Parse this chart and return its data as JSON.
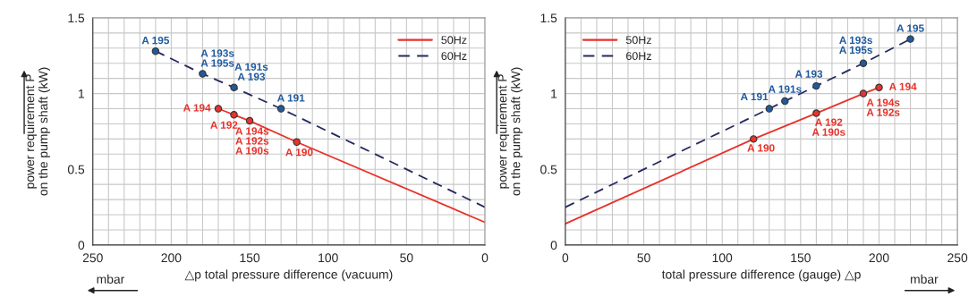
{
  "chart_data": [
    {
      "type": "line",
      "xlabel": "△p total pressure difference (vacuum)",
      "ylabel": "power requirement P\non the pump shaft (kW)",
      "xlim": [
        250,
        0
      ],
      "ylim": [
        0,
        1.5
      ],
      "xticks": [
        0,
        {
          "value": 10,
          "label": null
        },
        {
          "value": 20,
          "label": null
        },
        {
          "value": 30,
          "label": null
        },
        {
          "value": 40,
          "label": null
        },
        50,
        {
          "value": 60,
          "label": null
        },
        {
          "value": 70,
          "label": null
        },
        {
          "value": 80,
          "label": null
        },
        {
          "value": 90,
          "label": null
        },
        100,
        {
          "value": 110,
          "label": null
        },
        {
          "value": 120,
          "label": null
        },
        {
          "value": 130,
          "label": null
        },
        {
          "value": 140,
          "label": null
        },
        150,
        {
          "value": 160,
          "label": null
        },
        {
          "value": 170,
          "label": null
        },
        {
          "value": 180,
          "label": null
        },
        {
          "value": 190,
          "label": null
        },
        200,
        {
          "value": 210,
          "label": null
        },
        {
          "value": 220,
          "label": null
        },
        {
          "value": 230,
          "label": null
        },
        {
          "value": 240,
          "label": null
        },
        250
      ],
      "yticks": [
        0,
        {
          "value": 0.1,
          "label": null
        },
        {
          "value": 0.2,
          "label": null
        },
        {
          "value": 0.3,
          "label": null
        },
        {
          "value": 0.4,
          "label": null
        },
        0.5,
        {
          "value": 0.6,
          "label": null
        },
        {
          "value": 0.7,
          "label": null
        },
        {
          "value": 0.8,
          "label": null
        },
        {
          "value": 0.9,
          "label": null
        },
        1,
        {
          "value": 1.1,
          "label": null
        },
        {
          "value": 1.2,
          "label": null
        },
        {
          "value": 1.3,
          "label": null
        },
        {
          "value": 1.4,
          "label": null
        },
        1.5
      ],
      "grid": true,
      "legend": "top right",
      "series": [
        {
          "name": "50Hz",
          "color": "#e8322a",
          "line_style": "solid",
          "marker": "none",
          "x": [
            170,
            160,
            150,
            120,
            0
          ],
          "values": [
            0.9,
            0.86,
            0.82,
            0.68,
            0.15
          ]
        },
        {
          "name": "60Hz",
          "color": "#252a5e",
          "line_style": "dashed",
          "marker": "none",
          "x": [
            210,
            180,
            160,
            130,
            0
          ],
          "values": [
            1.28,
            1.13,
            1.04,
            0.9,
            0.25
          ]
        },
        {
          "type": "scatter",
          "color": "#e8322a",
          "marker": "circle",
          "x": [
            170,
            160,
            150,
            120
          ],
          "values": [
            0.9,
            0.86,
            0.82,
            0.68
          ]
        },
        {
          "type": "scatter",
          "color": "#1f5a9e",
          "marker": "circle",
          "x": [
            210,
            180,
            160,
            130
          ],
          "values": [
            1.28,
            1.13,
            1.04,
            0.9
          ]
        }
      ],
      "annotations": [
        {
          "text": "A 195",
          "x": 210,
          "y": 1.28
        },
        {
          "text": "A 193s\nA 195s",
          "x": 180,
          "y": 1.13
        },
        {
          "text": "A 191s\nA 193",
          "x": 160,
          "y": 1.04
        },
        {
          "text": "A 191",
          "x": 130,
          "y": 0.9
        },
        {
          "text": "A 194",
          "x": 170,
          "y": 0.9
        },
        {
          "text": "A 192",
          "x": 160,
          "y": 0.86
        },
        {
          "text": "A 194s\nA 192s\nA 190s",
          "x": 150,
          "y": 0.82
        },
        {
          "text": "A 190",
          "x": 120,
          "y": 0.68
        },
        "mbar"
      ]
    },
    {
      "type": "line",
      "xlabel": "total pressure difference (gauge) △p",
      "ylabel": "power requirement P\non the pump shaft (kW)",
      "xlim": [
        0,
        250
      ],
      "ylim": [
        0,
        1.5
      ],
      "xticks": [
        0,
        {
          "value": 10,
          "label": null
        },
        {
          "value": 20,
          "label": null
        },
        {
          "value": 30,
          "label": null
        },
        {
          "value": 40,
          "label": null
        },
        50,
        {
          "value": 60,
          "label": null
        },
        {
          "value": 70,
          "label": null
        },
        {
          "value": 80,
          "label": null
        },
        {
          "value": 90,
          "label": null
        },
        100,
        {
          "value": 110,
          "label": null
        },
        {
          "value": 120,
          "label": null
        },
        {
          "value": 130,
          "label": null
        },
        {
          "value": 140,
          "label": null
        },
        150,
        {
          "value": 160,
          "label": null
        },
        {
          "value": 170,
          "label": null
        },
        {
          "value": 180,
          "label": null
        },
        {
          "value": 190,
          "label": null
        },
        200,
        {
          "value": 210,
          "label": null
        },
        {
          "value": 220,
          "label": null
        },
        {
          "value": 230,
          "label": null
        },
        {
          "value": 240,
          "label": null
        },
        250
      ],
      "yticks": [
        0,
        {
          "value": 0.1,
          "label": null
        },
        {
          "value": 0.2,
          "label": null
        },
        {
          "value": 0.3,
          "label": null
        },
        {
          "value": 0.4,
          "label": null
        },
        0.5,
        {
          "value": 0.6,
          "label": null
        },
        {
          "value": 0.7,
          "label": null
        },
        {
          "value": 0.8,
          "label": null
        },
        {
          "value": 0.9,
          "label": null
        },
        1,
        {
          "value": 1.1,
          "label": null
        },
        {
          "value": 1.2,
          "label": null
        },
        {
          "value": 1.3,
          "label": null
        },
        {
          "value": 1.4,
          "label": null
        },
        1.5
      ],
      "grid": true,
      "legend": "top left",
      "series": [
        {
          "name": "50Hz",
          "color": "#e8322a",
          "line_style": "solid",
          "marker": "none",
          "x": [
            0,
            120,
            160,
            190,
            200
          ],
          "values": [
            0.14,
            0.7,
            0.87,
            1.0,
            1.04
          ]
        },
        {
          "name": "60Hz",
          "color": "#252a5e",
          "line_style": "dashed",
          "marker": "none",
          "x": [
            0,
            130,
            140,
            160,
            190,
            220
          ],
          "values": [
            0.25,
            0.9,
            0.95,
            1.05,
            1.2,
            1.36
          ]
        },
        {
          "type": "scatter",
          "color": "#e8322a",
          "marker": "circle",
          "x": [
            120,
            160,
            190,
            200
          ],
          "values": [
            0.7,
            0.87,
            1.0,
            1.04
          ]
        },
        {
          "type": "scatter",
          "color": "#1f5a9e",
          "marker": "circle",
          "x": [
            130,
            140,
            160,
            190,
            220
          ],
          "values": [
            0.9,
            0.95,
            1.05,
            1.2,
            1.36
          ]
        }
      ],
      "annotations": [
        {
          "text": "A 190",
          "x": 120,
          "y": 0.7
        },
        {
          "text": "A 192\nA 190s",
          "x": 160,
          "y": 0.87
        },
        {
          "text": "A 194s\nA 192s",
          "x": 190,
          "y": 1.0
        },
        {
          "text": "A 194",
          "x": 200,
          "y": 1.04
        },
        {
          "text": "A 191",
          "x": 130,
          "y": 0.9
        },
        {
          "text": "A 191s",
          "x": 140,
          "y": 0.95
        },
        {
          "text": "A 193",
          "x": 160,
          "y": 1.05
        },
        {
          "text": "A 193s\nA 195s",
          "x": 190,
          "y": 1.2
        },
        {
          "text": "A 195",
          "x": 220,
          "y": 1.36
        },
        "mbar"
      ]
    }
  ]
}
